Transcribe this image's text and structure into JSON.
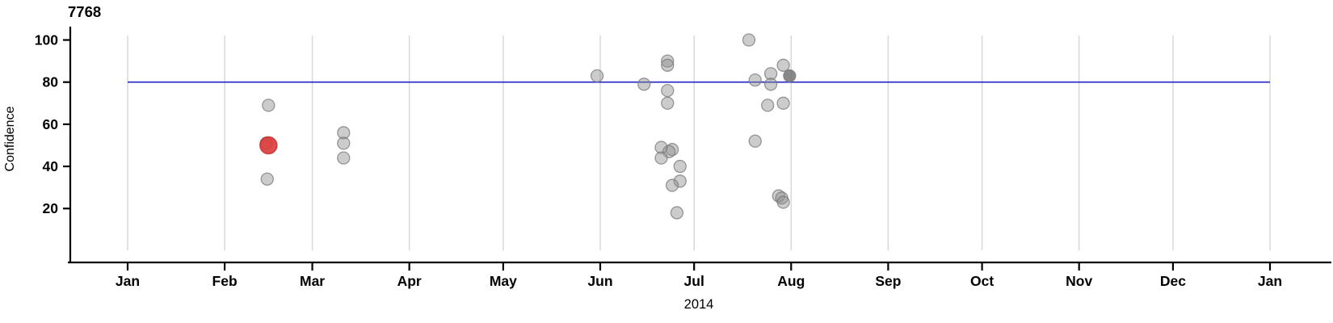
{
  "chart_data": {
    "type": "scatter",
    "title": "7768",
    "xlabel": "2014",
    "ylabel": "Confidence",
    "x_axis": {
      "kind": "date",
      "year_label": "2014",
      "tick_labels": [
        "Jan",
        "Feb",
        "Mar",
        "Apr",
        "May",
        "Jun",
        "Jul",
        "Aug",
        "Sep",
        "Oct",
        "Nov",
        "Dec",
        "Jan"
      ],
      "tick_day_of_year": [
        0,
        31,
        59,
        90,
        120,
        151,
        181,
        212,
        243,
        273,
        304,
        334,
        365
      ],
      "gridlines": "vertical-only"
    },
    "y_axis": {
      "tick_labels": [
        "100",
        "80",
        "60",
        "40",
        "20"
      ],
      "tick_values": [
        100,
        80,
        60,
        40,
        20
      ],
      "ylim": [
        -6,
        106
      ]
    },
    "reference_line": {
      "value": 80
    },
    "legend": null,
    "points": [
      {
        "date": "Feb 14",
        "day": 44.3,
        "confidence": 51,
        "style": "normal"
      },
      {
        "date": "Feb 15",
        "day": 45,
        "confidence": 69,
        "style": "normal"
      },
      {
        "date": "Feb 14",
        "day": 44.6,
        "confidence": 34,
        "style": "normal"
      },
      {
        "date": "Feb 15",
        "day": 45,
        "confidence": 50,
        "style": "selected"
      },
      {
        "date": "Mar 11",
        "day": 69,
        "confidence": 56,
        "style": "normal"
      },
      {
        "date": "Mar 11",
        "day": 69,
        "confidence": 51,
        "style": "normal"
      },
      {
        "date": "Mar 11",
        "day": 69,
        "confidence": 44,
        "style": "normal"
      },
      {
        "date": "May 31",
        "day": 150,
        "confidence": 83,
        "style": "normal"
      },
      {
        "date": "Jun 15",
        "day": 165,
        "confidence": 79,
        "style": "normal"
      },
      {
        "date": "Jun 22",
        "day": 172.5,
        "confidence": 90,
        "style": "normal"
      },
      {
        "date": "Jun 22",
        "day": 172.5,
        "confidence": 88,
        "style": "normal"
      },
      {
        "date": "Jun 22",
        "day": 172.5,
        "confidence": 76,
        "style": "normal"
      },
      {
        "date": "Jun 22",
        "day": 172.5,
        "confidence": 70,
        "style": "normal"
      },
      {
        "date": "Jun 20",
        "day": 170.5,
        "confidence": 49,
        "style": "normal"
      },
      {
        "date": "Jun 24",
        "day": 174,
        "confidence": 48,
        "style": "normal"
      },
      {
        "date": "Jun 23",
        "day": 173,
        "confidence": 47,
        "style": "normal"
      },
      {
        "date": "Jun 20",
        "day": 170.5,
        "confidence": 44,
        "style": "normal"
      },
      {
        "date": "Jun 26",
        "day": 176.5,
        "confidence": 40,
        "style": "normal"
      },
      {
        "date": "Jun 26",
        "day": 176.5,
        "confidence": 33,
        "style": "normal"
      },
      {
        "date": "Jun 24",
        "day": 174,
        "confidence": 31,
        "style": "normal"
      },
      {
        "date": "Jun 25",
        "day": 175.5,
        "confidence": 18,
        "style": "normal"
      },
      {
        "date": "Jul 18",
        "day": 198.5,
        "confidence": 100,
        "style": "normal"
      },
      {
        "date": "Jul 28",
        "day": 209.5,
        "confidence": 88,
        "style": "normal"
      },
      {
        "date": "Jul 25",
        "day": 205.5,
        "confidence": 84,
        "style": "normal"
      },
      {
        "date": "Jul 31",
        "day": 211.5,
        "confidence": 83,
        "style": "dark"
      },
      {
        "date": "Jul 20",
        "day": 200.5,
        "confidence": 81,
        "style": "normal"
      },
      {
        "date": "Jul 25",
        "day": 205.5,
        "confidence": 79,
        "style": "normal"
      },
      {
        "date": "Jul 28",
        "day": 209.5,
        "confidence": 70,
        "style": "normal"
      },
      {
        "date": "Jul 24",
        "day": 204.5,
        "confidence": 69,
        "style": "normal"
      },
      {
        "date": "Jul 20",
        "day": 200.5,
        "confidence": 52,
        "style": "normal"
      },
      {
        "date": "Jul 27",
        "day": 208,
        "confidence": 26,
        "style": "normal"
      },
      {
        "date": "Jul 28",
        "day": 209,
        "confidence": 25,
        "style": "normal"
      },
      {
        "date": "Jul 28",
        "day": 209.5,
        "confidence": 23,
        "style": "normal"
      }
    ],
    "colors": {
      "background": "#ffffff",
      "axis": "#000000",
      "text": "#000000",
      "gridline": "#d8d8d8",
      "reference_line": "#2121c8",
      "point_fill": "#8f8f8f",
      "point_stroke": "#787878",
      "point_dark_fill": "#6a6a6a",
      "selected_fill": "#dd3a3a",
      "selected_stroke": "#c22626"
    }
  }
}
